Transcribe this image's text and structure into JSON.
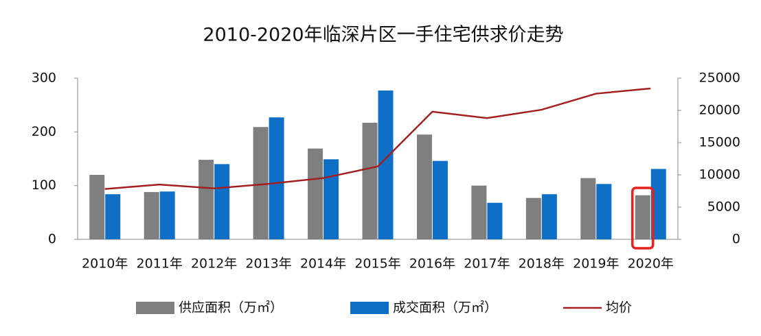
{
  "chart_data": {
    "type": "bar-line",
    "title": "2010-2020年临深片区一手住宅供求价走势",
    "categories": [
      "2010年",
      "2011年",
      "2012年",
      "2013年",
      "2014年",
      "2015年",
      "2016年",
      "2017年",
      "2018年",
      "2019年",
      "2020年"
    ],
    "series": [
      {
        "name": "供应面积（万㎡）",
        "type": "bar",
        "color": "#7f7f7f",
        "values": [
          120,
          88,
          148,
          209,
          169,
          217,
          195,
          100,
          77,
          114,
          82
        ]
      },
      {
        "name": "成交面积（万㎡）",
        "type": "bar",
        "color": "#0f6fc6",
        "values": [
          84,
          89,
          140,
          227,
          149,
          277,
          146,
          68,
          84,
          103,
          131
        ]
      },
      {
        "name": "均价",
        "type": "line",
        "axis": "y2",
        "color": "#a31f1f",
        "values": [
          7800,
          8500,
          7900,
          8600,
          9500,
          11300,
          19800,
          18800,
          20100,
          22600,
          23400
        ]
      }
    ],
    "ylim": [
      0,
      300
    ],
    "yticks": [
      0,
      100,
      200,
      300
    ],
    "y2lim": [
      0,
      25000
    ],
    "y2ticks": [
      0,
      5000,
      10000,
      15000,
      20000,
      25000
    ],
    "grid": false,
    "legend": "bottom"
  }
}
